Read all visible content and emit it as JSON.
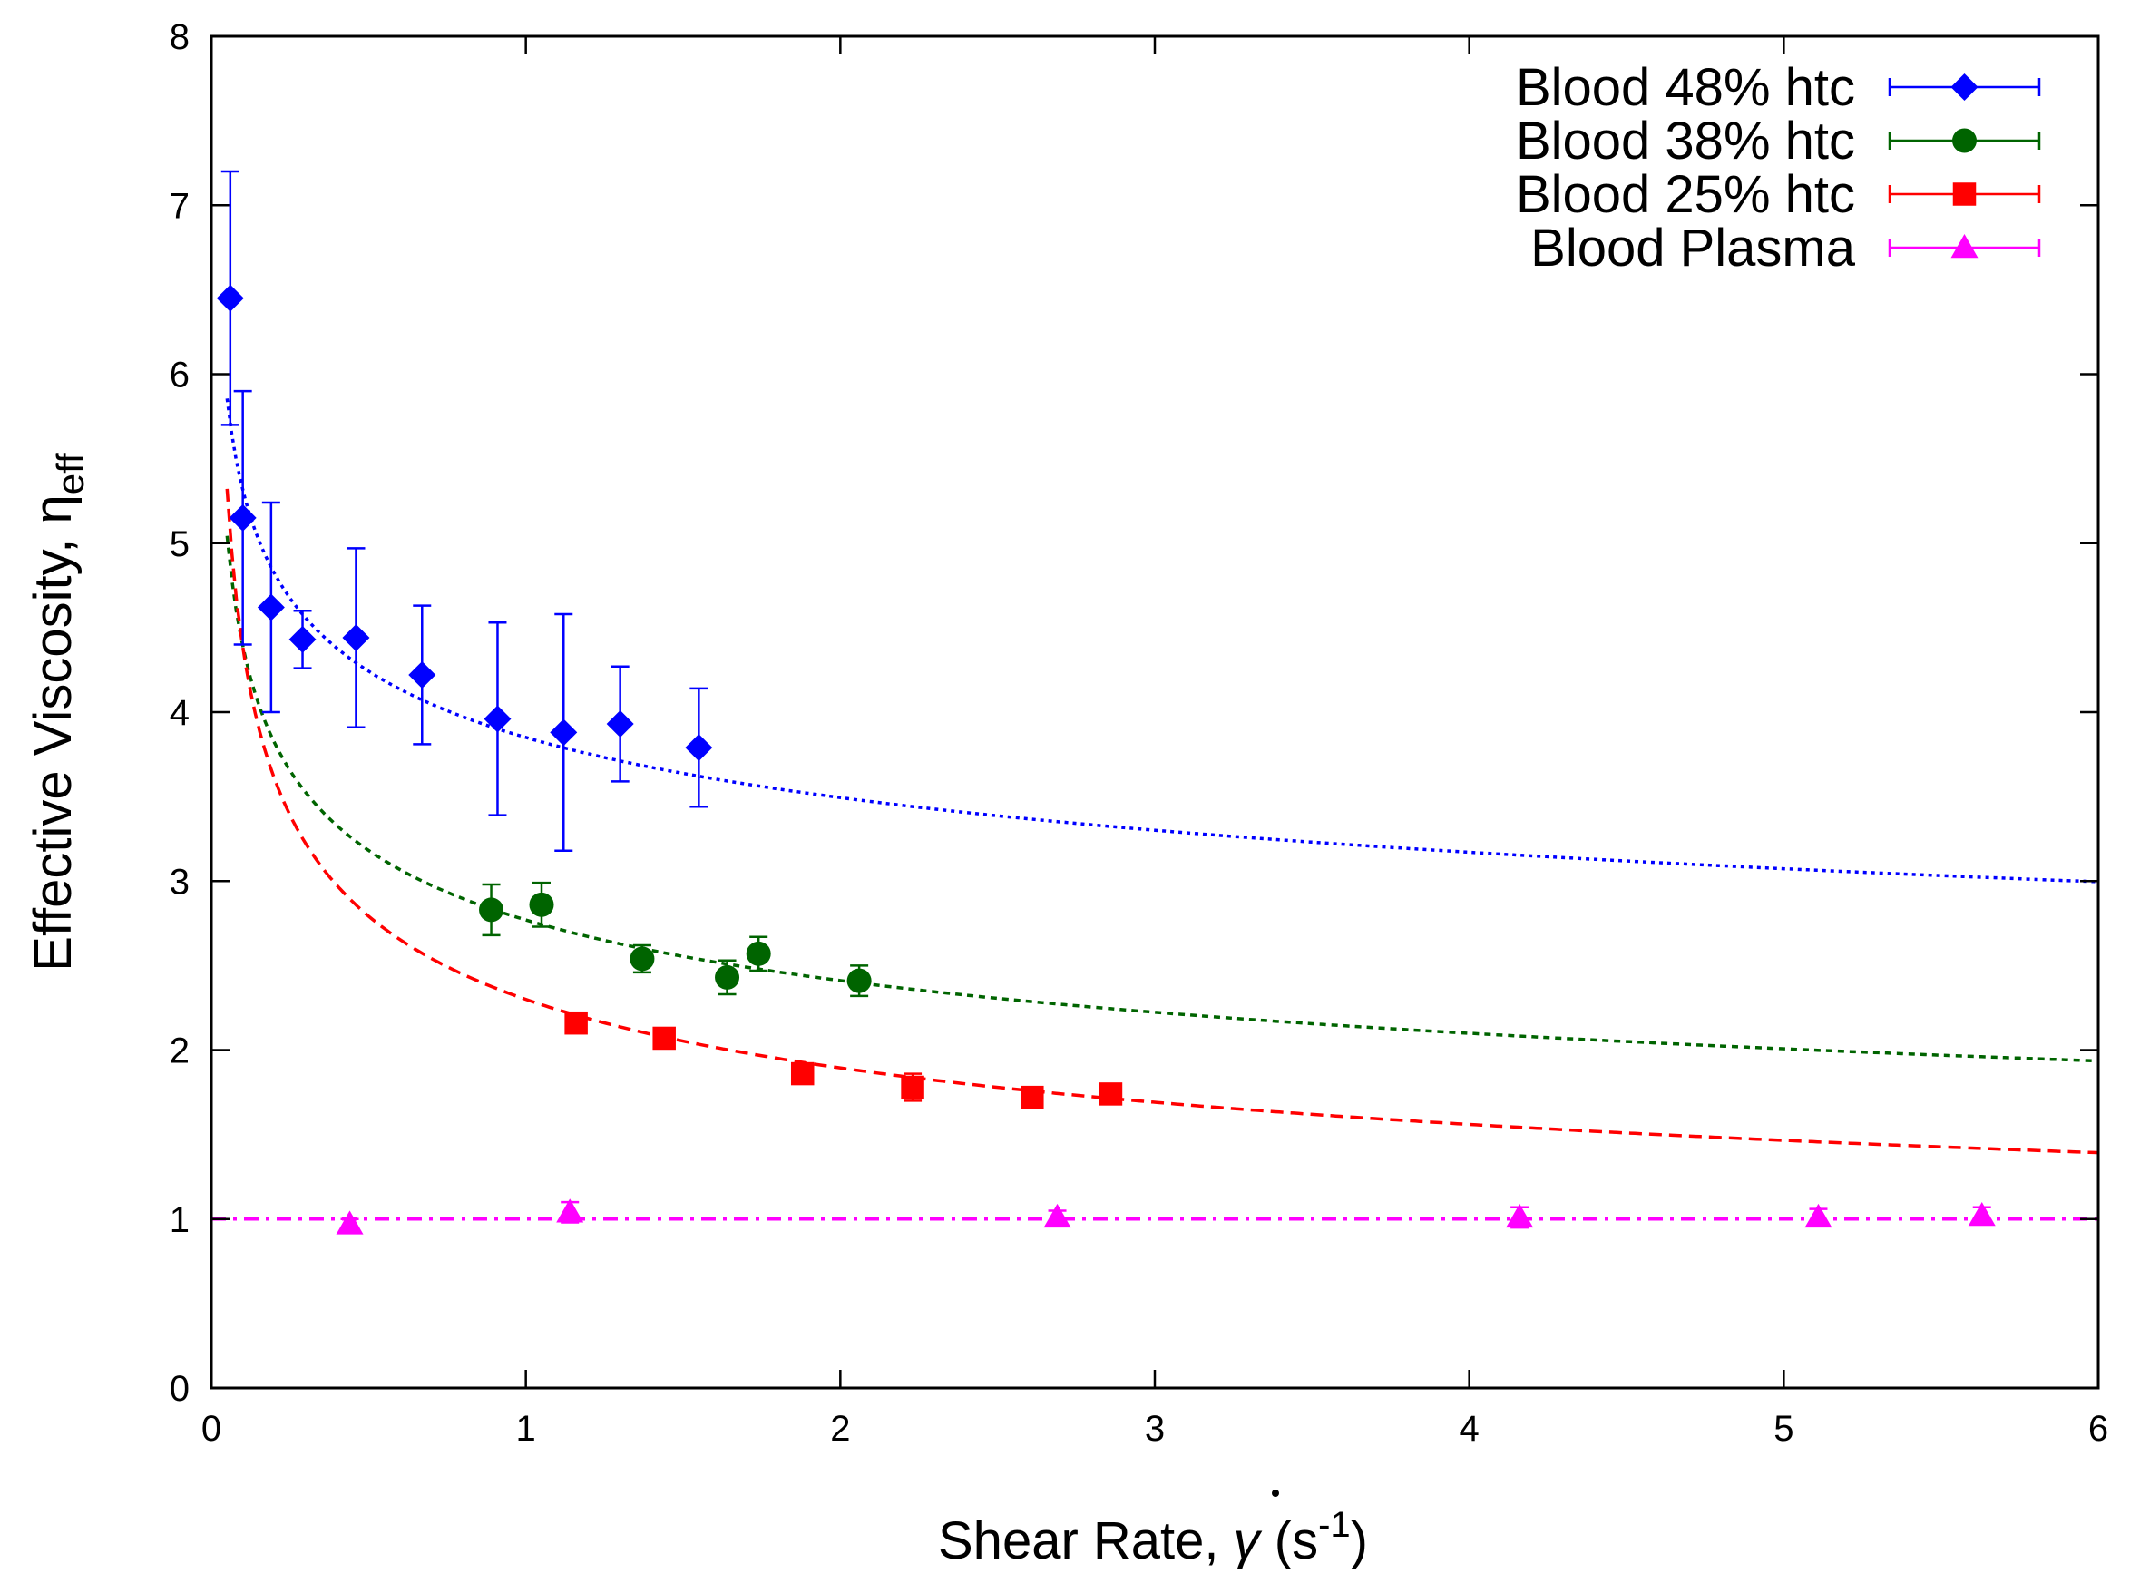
{
  "chart_data": {
    "type": "scatter",
    "title": "",
    "xlabel": {
      "prefix": "Shear Rate, ",
      "symbol": "γ",
      "unit_open": " (s",
      "unit_exp": "-1",
      "unit_close": ")"
    },
    "ylabel": {
      "prefix": "Effective Viscosity, ",
      "symbol": "η",
      "subscript": "eff"
    },
    "xlim": [
      0,
      6
    ],
    "ylim": [
      0,
      8
    ],
    "xticks": [
      "0",
      "1",
      "2",
      "3",
      "4",
      "5",
      "6"
    ],
    "yticks": [
      "0",
      "1",
      "2",
      "3",
      "4",
      "5",
      "6",
      "7",
      "8"
    ],
    "grid": false,
    "legend_position": "top-right",
    "series": [
      {
        "name": "Blood 48% htc",
        "color": "#0000ff",
        "marker": "diamond",
        "fit_style": "dotted",
        "fit": {
          "a": 3.85,
          "b": -0.14
        },
        "points": [
          {
            "x": 0.06,
            "y": 6.45,
            "err": 0.75
          },
          {
            "x": 0.1,
            "y": 5.15,
            "err": 0.75
          },
          {
            "x": 0.19,
            "y": 4.62,
            "err": 0.62
          },
          {
            "x": 0.29,
            "y": 4.43,
            "err": 0.17
          },
          {
            "x": 0.46,
            "y": 4.44,
            "err": 0.53
          },
          {
            "x": 0.67,
            "y": 4.22,
            "err": 0.41
          },
          {
            "x": 0.91,
            "y": 3.96,
            "err": 0.57
          },
          {
            "x": 1.12,
            "y": 3.88,
            "err": 0.7
          },
          {
            "x": 1.3,
            "y": 3.93,
            "err": 0.34
          },
          {
            "x": 1.55,
            "y": 3.79,
            "err": 0.35
          }
        ]
      },
      {
        "name": "Blood 38% htc",
        "color": "#006400",
        "marker": "circle",
        "fit_style": "dense-dashed",
        "fit": {
          "a": 2.77,
          "b": -0.2
        },
        "points": [
          {
            "x": 0.89,
            "y": 2.83,
            "err": 0.15
          },
          {
            "x": 1.05,
            "y": 2.86,
            "err": 0.13
          },
          {
            "x": 1.37,
            "y": 2.54,
            "err": 0.08
          },
          {
            "x": 1.64,
            "y": 2.43,
            "err": 0.1
          },
          {
            "x": 1.74,
            "y": 2.57,
            "err": 0.1
          },
          {
            "x": 2.06,
            "y": 2.41,
            "err": 0.09
          }
        ]
      },
      {
        "name": "Blood 25% htc",
        "color": "#ff0000",
        "marker": "square",
        "fit_style": "dashed",
        "fit": {
          "a": 2.3,
          "b": -0.28
        },
        "points": [
          {
            "x": 1.16,
            "y": 2.16,
            "err": 0.05
          },
          {
            "x": 1.44,
            "y": 2.07,
            "err": 0.05
          },
          {
            "x": 1.88,
            "y": 1.86,
            "err": 0.05
          },
          {
            "x": 2.23,
            "y": 1.78,
            "err": 0.08
          },
          {
            "x": 2.61,
            "y": 1.72,
            "err": 0.05
          },
          {
            "x": 2.86,
            "y": 1.74,
            "err": 0.05
          }
        ]
      },
      {
        "name": "Blood Plasma",
        "color": "#ff00ff",
        "marker": "triangle",
        "fit_style": "dash-dot",
        "fit": {
          "a": 1.0,
          "b": 0.0
        },
        "points": [
          {
            "x": 0.44,
            "y": 0.97,
            "err": 0.03
          },
          {
            "x": 1.14,
            "y": 1.04,
            "err": 0.06
          },
          {
            "x": 2.69,
            "y": 1.01,
            "err": 0.04
          },
          {
            "x": 4.16,
            "y": 1.01,
            "err": 0.06
          },
          {
            "x": 5.11,
            "y": 1.01,
            "err": 0.05
          },
          {
            "x": 5.63,
            "y": 1.02,
            "err": 0.05
          }
        ]
      }
    ]
  }
}
